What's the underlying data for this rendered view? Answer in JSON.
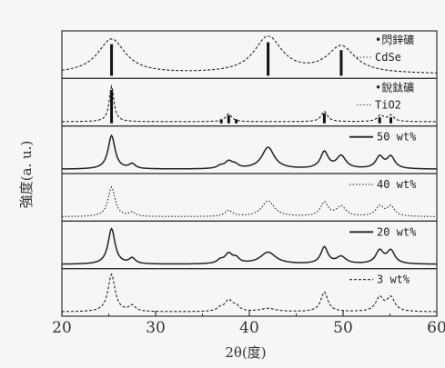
{
  "chart_data": {
    "type": "line",
    "xlabel": "2θ(度)",
    "ylabel": "強度(a. u.)",
    "xlim": [
      20,
      60
    ],
    "xticks": [
      20,
      30,
      40,
      50,
      60
    ],
    "grid": false,
    "panels": [
      {
        "key": "cdse_ref",
        "legend": [
          "•閃鋅礦",
          "CdSe"
        ],
        "legend_style": "sticks+dots",
        "stick_values": [
          [
            25.3,
            0.8
          ],
          [
            42.0,
            0.85
          ],
          [
            49.8,
            0.65
          ]
        ],
        "peaks": [
          [
            25.3,
            0.88,
            1.8
          ],
          [
            42.0,
            0.93,
            1.8
          ],
          [
            49.8,
            0.68,
            1.8
          ]
        ],
        "baseline": 0.04
      },
      {
        "key": "tio2_ref",
        "legend": [
          "•銳鈦礦",
          "TiO2"
        ],
        "legend_style": "sticks+dots",
        "stick_values": [
          [
            25.3,
            0.85
          ],
          [
            37.0,
            0.1
          ],
          [
            37.8,
            0.2
          ],
          [
            38.6,
            0.1
          ],
          [
            48.0,
            0.25
          ],
          [
            53.9,
            0.15
          ],
          [
            55.1,
            0.15
          ]
        ],
        "peaks": [
          [
            25.3,
            0.9,
            0.3
          ],
          [
            37.8,
            0.2,
            0.4
          ],
          [
            48.0,
            0.26,
            0.4
          ],
          [
            54.0,
            0.16,
            0.4
          ],
          [
            55.1,
            0.16,
            0.4
          ]
        ],
        "baseline": 0.04
      },
      {
        "key": "50",
        "legend": [
          "50 wt%"
        ],
        "legend_style": "solid",
        "peaks": [
          [
            25.3,
            0.85,
            0.45
          ],
          [
            27.5,
            0.12,
            0.4
          ],
          [
            36.9,
            0.06,
            0.4
          ],
          [
            37.8,
            0.18,
            0.5
          ],
          [
            38.5,
            0.08,
            0.4
          ],
          [
            42.0,
            0.55,
            0.8
          ],
          [
            48.0,
            0.42,
            0.5
          ],
          [
            49.8,
            0.32,
            0.6
          ],
          [
            53.9,
            0.3,
            0.5
          ],
          [
            55.1,
            0.3,
            0.5
          ]
        ],
        "baseline": 0.04
      },
      {
        "key": "40",
        "legend": [
          "40 wt%"
        ],
        "legend_style": "dotted",
        "peaks": [
          [
            25.3,
            0.75,
            0.45
          ],
          [
            27.5,
            0.1,
            0.4
          ],
          [
            37.8,
            0.15,
            0.5
          ],
          [
            42.0,
            0.4,
            0.8
          ],
          [
            48.0,
            0.35,
            0.5
          ],
          [
            49.8,
            0.25,
            0.6
          ],
          [
            53.9,
            0.25,
            0.5
          ],
          [
            55.1,
            0.25,
            0.5
          ]
        ],
        "baseline": 0.04
      },
      {
        "key": "20",
        "legend": [
          "20 wt%"
        ],
        "legend_style": "solid",
        "peaks": [
          [
            25.3,
            0.9,
            0.45
          ],
          [
            27.5,
            0.14,
            0.4
          ],
          [
            36.9,
            0.08,
            0.4
          ],
          [
            37.8,
            0.25,
            0.5
          ],
          [
            38.6,
            0.12,
            0.4
          ],
          [
            42.0,
            0.3,
            1.0
          ],
          [
            48.0,
            0.42,
            0.45
          ],
          [
            49.8,
            0.18,
            0.6
          ],
          [
            53.9,
            0.33,
            0.5
          ],
          [
            55.1,
            0.33,
            0.5
          ]
        ],
        "baseline": 0.04
      },
      {
        "key": "3",
        "legend": [
          "3 wt%"
        ],
        "legend_style": "dashed",
        "peaks": [
          [
            25.3,
            0.95,
            0.45
          ],
          [
            27.5,
            0.15,
            0.4
          ],
          [
            36.9,
            0.08,
            0.4
          ],
          [
            37.8,
            0.28,
            0.5
          ],
          [
            38.6,
            0.12,
            0.4
          ],
          [
            42.0,
            0.08,
            1.0
          ],
          [
            48.0,
            0.5,
            0.45
          ],
          [
            53.9,
            0.35,
            0.5
          ],
          [
            55.1,
            0.35,
            0.5
          ]
        ],
        "baseline": 0.04
      }
    ]
  }
}
